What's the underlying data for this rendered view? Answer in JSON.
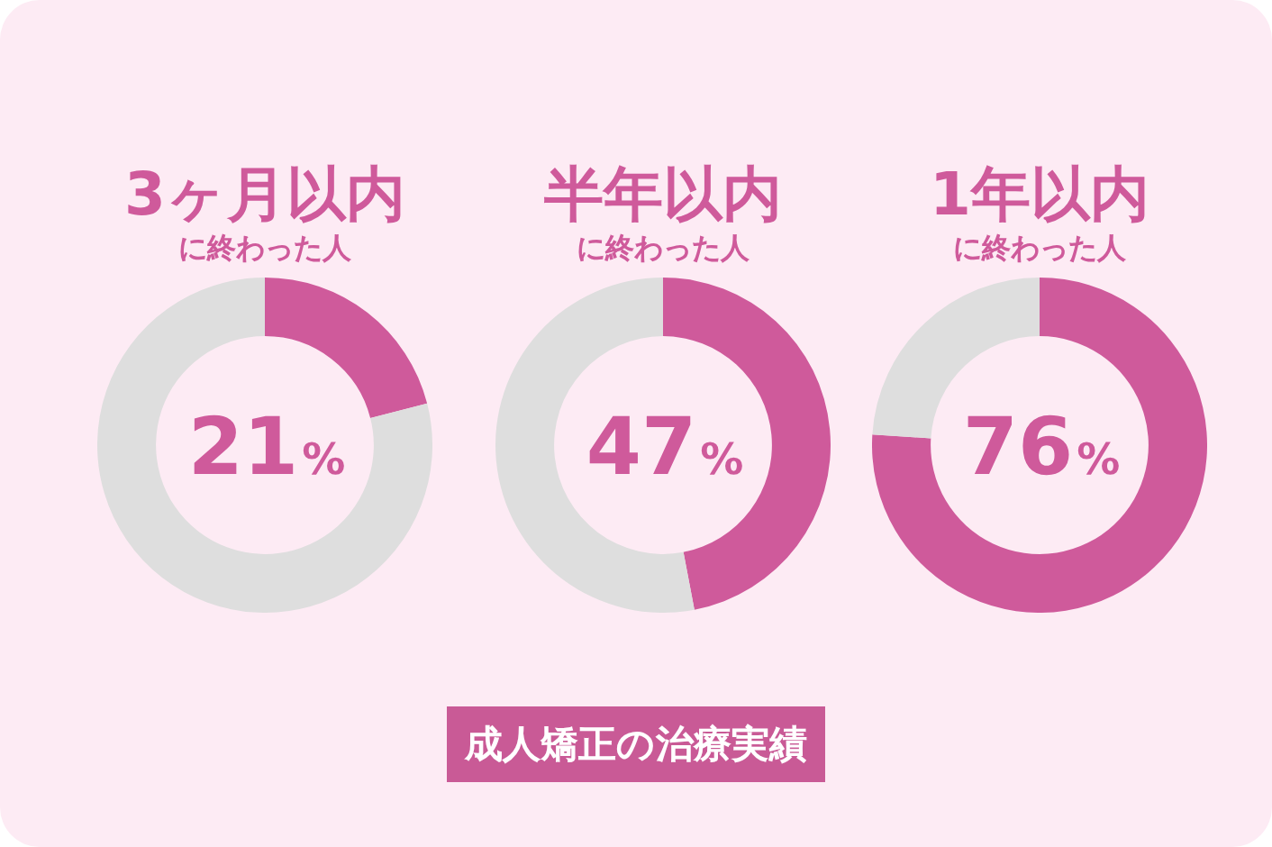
{
  "chart_data": [
    {
      "type": "donut",
      "title": "3ヶ月以内",
      "subtitle": "に終わった人",
      "categories": [
        null,
        null
      ],
      "values": [
        21,
        79
      ],
      "colors": [
        "#cf5a9b",
        "#dedede"
      ],
      "annotations": [
        "21%"
      ],
      "legend": false
    },
    {
      "type": "donut",
      "title": "半年以内",
      "subtitle": "に終わった人",
      "categories": [
        null,
        null
      ],
      "values": [
        47,
        53
      ],
      "colors": [
        "#cf5a9b",
        "#dedede"
      ],
      "annotations": [
        "47%"
      ],
      "legend": false
    },
    {
      "type": "donut",
      "title": "1年以内",
      "subtitle": "に終わった人",
      "categories": [
        null,
        null
      ],
      "values": [
        76,
        24
      ],
      "colors": [
        "#cf5a9b",
        "#dedede"
      ],
      "annotations": [
        "76%"
      ],
      "legend": false
    },
    {
      "type": "other",
      "title": "成人矯正の治療実績"
    }
  ]
}
